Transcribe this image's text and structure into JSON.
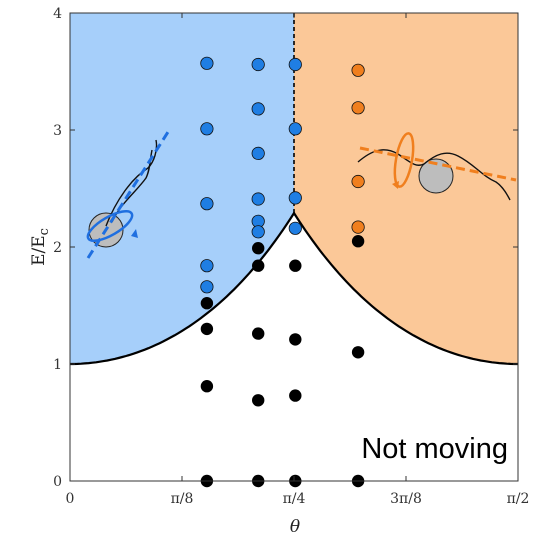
{
  "chart_data": {
    "type": "scatter",
    "title": "",
    "xlabel": "θ",
    "ylabel_main": "E/E",
    "ylabel_sub": "c",
    "xlim": [
      0,
      1.5708
    ],
    "ylim": [
      0,
      4
    ],
    "x_ticks": [
      {
        "value": 0,
        "label": "0"
      },
      {
        "value": 0.3927,
        "label": "π/8"
      },
      {
        "value": 0.7854,
        "label": "π/4"
      },
      {
        "value": 1.1781,
        "label": "3π/8"
      },
      {
        "value": 1.5708,
        "label": "π/2"
      }
    ],
    "y_ticks": [
      {
        "value": 0,
        "label": "0"
      },
      {
        "value": 1,
        "label": "1"
      },
      {
        "value": 2,
        "label": "2"
      },
      {
        "value": 3,
        "label": "3"
      },
      {
        "value": 4,
        "label": "4"
      }
    ],
    "grid": false,
    "annotation": "Not moving",
    "regions": {
      "left_color": "#A6CFFA",
      "right_color": "#FBC898",
      "boundary_peak": {
        "x": 0.7854,
        "y": 2.29
      }
    },
    "series": [
      {
        "color": "#1F7EE3",
        "points": [
          {
            "x": 0.48,
            "y": 3.57
          },
          {
            "x": 0.48,
            "y": 3.01
          },
          {
            "x": 0.48,
            "y": 2.37
          },
          {
            "x": 0.48,
            "y": 1.84
          },
          {
            "x": 0.48,
            "y": 1.66
          },
          {
            "x": 0.66,
            "y": 3.56
          },
          {
            "x": 0.66,
            "y": 3.18
          },
          {
            "x": 0.66,
            "y": 2.8
          },
          {
            "x": 0.66,
            "y": 2.41
          },
          {
            "x": 0.66,
            "y": 2.22
          },
          {
            "x": 0.66,
            "y": 2.13
          },
          {
            "x": 0.79,
            "y": 3.56
          },
          {
            "x": 0.79,
            "y": 3.01
          },
          {
            "x": 0.79,
            "y": 2.42
          },
          {
            "x": 0.79,
            "y": 2.16
          }
        ]
      },
      {
        "color": "#F07F1E",
        "points": [
          {
            "x": 1.01,
            "y": 3.51
          },
          {
            "x": 1.01,
            "y": 3.19
          },
          {
            "x": 1.01,
            "y": 2.56
          },
          {
            "x": 1.01,
            "y": 2.17
          }
        ]
      },
      {
        "color": "#000000",
        "points": [
          {
            "x": 0.48,
            "y": 1.52
          },
          {
            "x": 0.48,
            "y": 1.3
          },
          {
            "x": 0.48,
            "y": 0.81
          },
          {
            "x": 0.48,
            "y": 0.0
          },
          {
            "x": 0.66,
            "y": 1.99
          },
          {
            "x": 0.66,
            "y": 1.84
          },
          {
            "x": 0.66,
            "y": 1.26
          },
          {
            "x": 0.66,
            "y": 0.69
          },
          {
            "x": 0.66,
            "y": 0.0
          },
          {
            "x": 0.79,
            "y": 1.84
          },
          {
            "x": 0.79,
            "y": 1.21
          },
          {
            "x": 0.79,
            "y": 0.73
          },
          {
            "x": 0.79,
            "y": 0.0
          },
          {
            "x": 1.01,
            "y": 2.05
          },
          {
            "x": 1.01,
            "y": 1.1
          },
          {
            "x": 1.01,
            "y": 0.0
          }
        ]
      }
    ]
  }
}
